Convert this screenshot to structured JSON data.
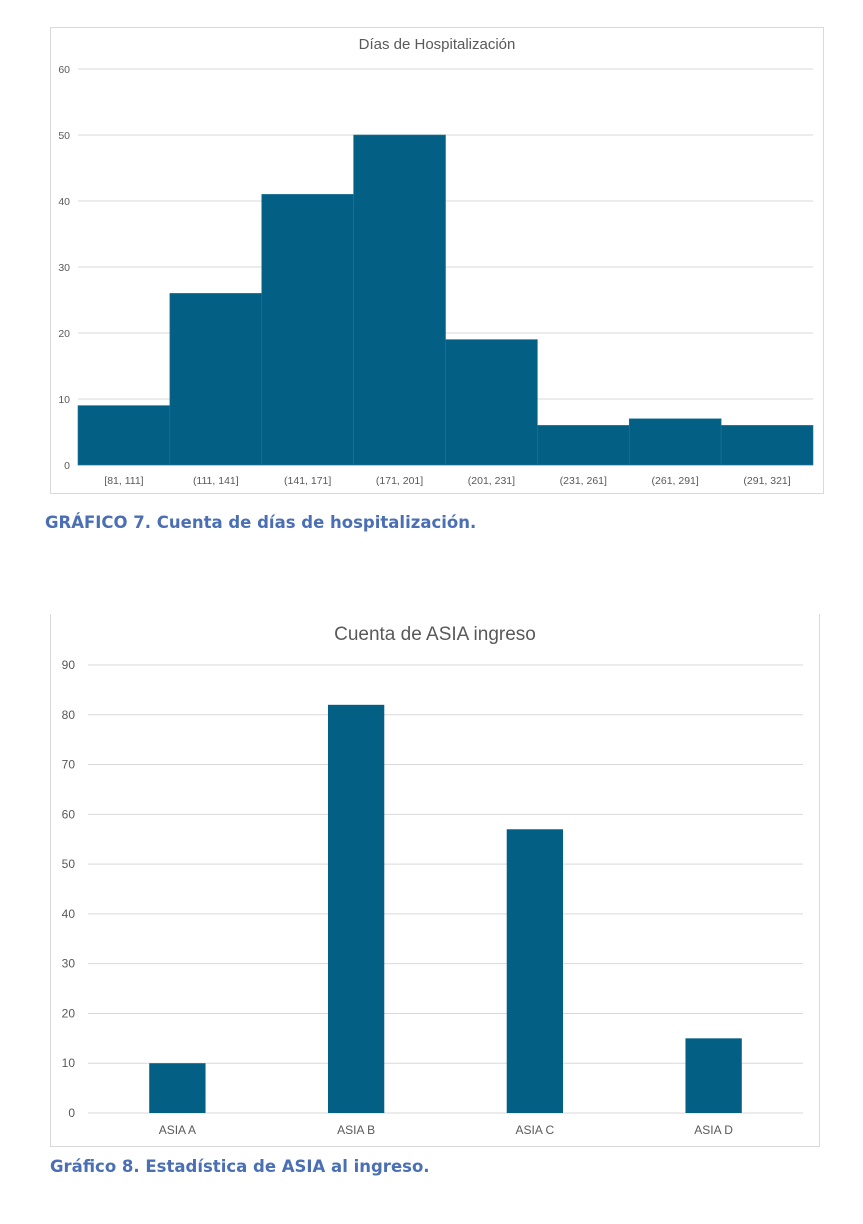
{
  "colors": {
    "bar": "#045f85",
    "grid": "#d9d9d9",
    "axis_text": "#595959",
    "caption": "#4a6fb5"
  },
  "chart_data": [
    {
      "type": "bar",
      "subtype": "histogram",
      "title": "Días de Hospitalización",
      "categories": [
        "[81, 111]",
        "(111, 141]",
        "(141, 171]",
        "(171, 201]",
        "(201, 231]",
        "(231, 261]",
        "(261, 291]",
        "(291, 321]"
      ],
      "values": [
        9,
        26,
        41,
        50,
        19,
        6,
        7,
        6
      ],
      "ylim": [
        0,
        60
      ],
      "yticks": [
        0,
        10,
        20,
        30,
        40,
        50,
        60
      ],
      "grid": true,
      "legend": "none"
    },
    {
      "type": "bar",
      "title": "Cuenta de ASIA ingreso",
      "categories": [
        "ASIA A",
        "ASIA B",
        "ASIA C",
        "ASIA D"
      ],
      "values": [
        10,
        82,
        57,
        15
      ],
      "ylim": [
        0,
        90
      ],
      "yticks": [
        0,
        10,
        20,
        30,
        40,
        50,
        60,
        70,
        80,
        90
      ],
      "grid": true,
      "legend": "none"
    }
  ],
  "captions": {
    "chart7": "GRÁFICO 7. Cuenta de días de hospitalización.",
    "chart8": "Gráfico 8. Estadística de ASIA al ingreso."
  }
}
